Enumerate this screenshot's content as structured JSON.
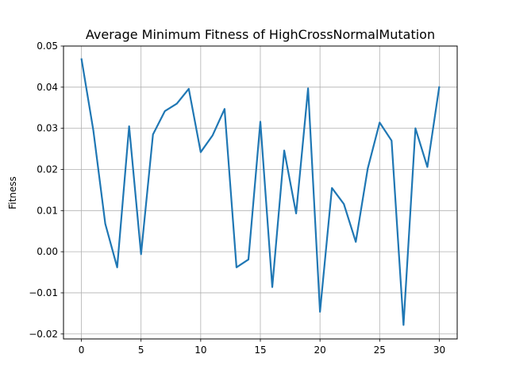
{
  "chart_data": {
    "type": "line",
    "title": "Average Minimum Fitness of HighCrossNormalMutation",
    "xlabel": "",
    "ylabel": "Fitness",
    "xlim": [
      -1.5,
      31.5
    ],
    "ylim": [
      -0.0212,
      0.05
    ],
    "x_ticks": [
      0,
      5,
      10,
      15,
      20,
      25,
      30
    ],
    "y_ticks": [
      -0.02,
      -0.01,
      0.0,
      0.01,
      0.02,
      0.03,
      0.04,
      0.05
    ],
    "y_tick_labels": [
      "−0.02",
      "−0.01",
      "0.00",
      "0.01",
      "0.02",
      "0.03",
      "0.04",
      "0.05"
    ],
    "grid": true,
    "series": [
      {
        "color": "#1f77b4",
        "x": [
          0,
          1,
          2,
          3,
          4,
          5,
          6,
          7,
          8,
          9,
          10,
          11,
          12,
          13,
          14,
          15,
          16,
          17,
          18,
          19,
          20,
          21,
          22,
          23,
          24,
          25,
          26,
          27,
          28,
          29,
          30
        ],
        "values": [
          0.047,
          0.0295,
          0.0068,
          -0.0038,
          0.0305,
          -0.0006,
          0.0285,
          0.0342,
          0.036,
          0.0396,
          0.0242,
          0.0283,
          0.0347,
          -0.0038,
          -0.0019,
          0.0316,
          -0.0086,
          0.0246,
          0.0093,
          0.0397,
          -0.0146,
          0.0155,
          0.0116,
          0.0024,
          0.0202,
          0.0314,
          0.027,
          -0.0178,
          0.03,
          0.0206,
          0.0402
        ]
      }
    ]
  }
}
